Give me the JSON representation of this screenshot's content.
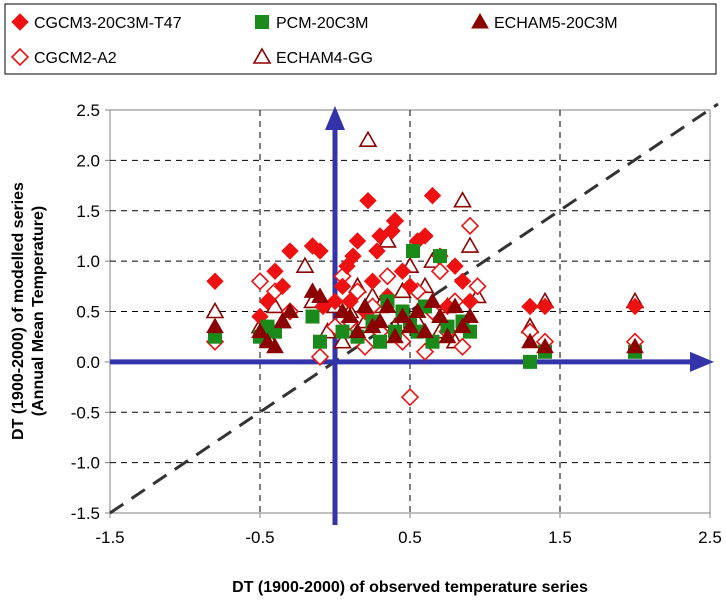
{
  "chart_data": {
    "type": "scatter",
    "xlabel": "DT (1900-2000) of observed temperature series",
    "ylabel_line1": "DT (1900-2000) of modelled series",
    "ylabel_line2": "(Annual Mean Temperature)",
    "xlim": [
      -1.5,
      2.5
    ],
    "ylim": [
      -1.5,
      2.5
    ],
    "x_ticks": [
      -1.5,
      -0.5,
      0.5,
      1.5,
      2.5
    ],
    "x_tick_labels": [
      "-1.5",
      "-0.5",
      "0.5",
      "1.5",
      "2.5"
    ],
    "y_ticks": [
      -1.5,
      -1.0,
      -0.5,
      0.0,
      0.5,
      1.0,
      1.5,
      2.0,
      2.5
    ],
    "y_tick_labels": [
      "-1.5",
      "-1.0",
      "-0.5",
      "0.0",
      "0.5",
      "1.0",
      "1.5",
      "2.0",
      "2.5"
    ],
    "grid": true,
    "legend_position": "top",
    "reference_line": "1:1 dashed line",
    "series": [
      {
        "name": "CGCM3-20C3M-T47",
        "marker": "filled-diamond",
        "color": "#ee1111",
        "points": [
          [
            -0.8,
            0.8
          ],
          [
            -0.5,
            0.45
          ],
          [
            -0.45,
            0.6
          ],
          [
            -0.4,
            0.9
          ],
          [
            -0.35,
            0.75
          ],
          [
            -0.3,
            1.1
          ],
          [
            -0.15,
            1.15
          ],
          [
            -0.1,
            1.1
          ],
          [
            -0.08,
            0.55
          ],
          [
            0.0,
            0.6
          ],
          [
            0.05,
            0.75
          ],
          [
            0.08,
            0.95
          ],
          [
            0.1,
            0.6
          ],
          [
            0.12,
            1.05
          ],
          [
            0.15,
            1.2
          ],
          [
            0.2,
            0.5
          ],
          [
            0.22,
            1.6
          ],
          [
            0.25,
            0.8
          ],
          [
            0.28,
            1.1
          ],
          [
            0.3,
            1.25
          ],
          [
            0.35,
            0.65
          ],
          [
            0.38,
            1.3
          ],
          [
            0.4,
            1.4
          ],
          [
            0.45,
            0.9
          ],
          [
            0.5,
            0.75
          ],
          [
            0.55,
            1.2
          ],
          [
            0.6,
            1.25
          ],
          [
            0.65,
            1.65
          ],
          [
            0.7,
            1.05
          ],
          [
            0.75,
            0.55
          ],
          [
            0.8,
            0.95
          ],
          [
            0.85,
            0.8
          ],
          [
            0.9,
            0.6
          ],
          [
            1.3,
            0.55
          ],
          [
            1.4,
            0.55
          ],
          [
            2.0,
            0.55
          ]
        ]
      },
      {
        "name": "PCM-20C3M",
        "marker": "filled-square",
        "color": "#1a8a1a",
        "points": [
          [
            -0.8,
            0.25
          ],
          [
            -0.5,
            0.25
          ],
          [
            -0.45,
            0.35
          ],
          [
            -0.4,
            0.3
          ],
          [
            -0.15,
            0.45
          ],
          [
            -0.1,
            0.2
          ],
          [
            0.05,
            0.3
          ],
          [
            0.15,
            0.25
          ],
          [
            0.25,
            0.4
          ],
          [
            0.3,
            0.2
          ],
          [
            0.35,
            0.6
          ],
          [
            0.4,
            0.3
          ],
          [
            0.45,
            0.5
          ],
          [
            0.5,
            0.4
          ],
          [
            0.52,
            1.1
          ],
          [
            0.55,
            0.3
          ],
          [
            0.6,
            0.55
          ],
          [
            0.65,
            0.2
          ],
          [
            0.7,
            1.05
          ],
          [
            0.75,
            0.35
          ],
          [
            0.85,
            0.4
          ],
          [
            0.9,
            0.3
          ],
          [
            1.3,
            0.0
          ],
          [
            1.4,
            0.1
          ],
          [
            2.0,
            0.1
          ]
        ]
      },
      {
        "name": "ECHAM5-20C3M",
        "marker": "filled-triangle",
        "color": "#8b0000",
        "points": [
          [
            -0.8,
            0.35
          ],
          [
            -0.5,
            0.3
          ],
          [
            -0.45,
            0.2
          ],
          [
            -0.4,
            0.15
          ],
          [
            -0.35,
            0.4
          ],
          [
            -0.3,
            0.5
          ],
          [
            -0.15,
            0.7
          ],
          [
            -0.1,
            0.65
          ],
          [
            0.05,
            0.5
          ],
          [
            0.1,
            0.45
          ],
          [
            0.15,
            0.3
          ],
          [
            0.2,
            0.55
          ],
          [
            0.25,
            0.35
          ],
          [
            0.3,
            0.4
          ],
          [
            0.35,
            0.55
          ],
          [
            0.4,
            0.25
          ],
          [
            0.45,
            0.45
          ],
          [
            0.5,
            0.35
          ],
          [
            0.55,
            0.5
          ],
          [
            0.6,
            0.3
          ],
          [
            0.65,
            0.6
          ],
          [
            0.7,
            0.45
          ],
          [
            0.75,
            0.25
          ],
          [
            0.8,
            0.55
          ],
          [
            0.85,
            0.35
          ],
          [
            0.9,
            0.45
          ],
          [
            1.3,
            0.2
          ],
          [
            1.4,
            0.15
          ],
          [
            2.0,
            0.15
          ]
        ]
      },
      {
        "name": "CGCM2-A2",
        "marker": "open-diamond",
        "color": "#ee1111",
        "points": [
          [
            -0.8,
            0.2
          ],
          [
            -0.5,
            0.8
          ],
          [
            -0.4,
            0.7
          ],
          [
            -0.3,
            0.5
          ],
          [
            -0.1,
            0.05
          ],
          [
            0.0,
            0.35
          ],
          [
            0.05,
            0.85
          ],
          [
            0.1,
            0.4
          ],
          [
            0.15,
            0.7
          ],
          [
            0.2,
            0.15
          ],
          [
            0.25,
            0.55
          ],
          [
            0.3,
            0.3
          ],
          [
            0.35,
            0.85
          ],
          [
            0.4,
            1.4
          ],
          [
            0.45,
            0.2
          ],
          [
            0.5,
            -0.35
          ],
          [
            0.55,
            0.7
          ],
          [
            0.6,
            0.1
          ],
          [
            0.65,
            0.5
          ],
          [
            0.7,
            0.9
          ],
          [
            0.75,
            0.3
          ],
          [
            0.8,
            0.6
          ],
          [
            0.85,
            0.15
          ],
          [
            0.9,
            1.35
          ],
          [
            0.95,
            0.75
          ],
          [
            1.3,
            0.3
          ],
          [
            1.4,
            0.2
          ],
          [
            2.0,
            0.2
          ]
        ]
      },
      {
        "name": "ECHAM4-GG",
        "marker": "open-triangle",
        "color": "#8b0000",
        "points": [
          [
            -0.8,
            0.5
          ],
          [
            -0.5,
            0.35
          ],
          [
            -0.45,
            0.25
          ],
          [
            -0.4,
            0.55
          ],
          [
            -0.35,
            0.4
          ],
          [
            -0.2,
            0.95
          ],
          [
            -0.15,
            0.6
          ],
          [
            -0.05,
            0.3
          ],
          [
            0.0,
            0.55
          ],
          [
            0.05,
            0.2
          ],
          [
            0.1,
            0.5
          ],
          [
            0.15,
            0.75
          ],
          [
            0.2,
            0.4
          ],
          [
            0.22,
            2.2
          ],
          [
            0.25,
            0.65
          ],
          [
            0.3,
            0.55
          ],
          [
            0.35,
            1.2
          ],
          [
            0.4,
            0.35
          ],
          [
            0.45,
            0.7
          ],
          [
            0.5,
            0.95
          ],
          [
            0.55,
            0.4
          ],
          [
            0.6,
            0.75
          ],
          [
            0.65,
            1.0
          ],
          [
            0.7,
            0.3
          ],
          [
            0.75,
            0.55
          ],
          [
            0.8,
            0.2
          ],
          [
            0.85,
            1.6
          ],
          [
            0.9,
            1.15
          ],
          [
            0.95,
            0.65
          ],
          [
            1.3,
            0.35
          ],
          [
            1.4,
            0.6
          ],
          [
            2.0,
            0.6
          ]
        ]
      }
    ]
  }
}
